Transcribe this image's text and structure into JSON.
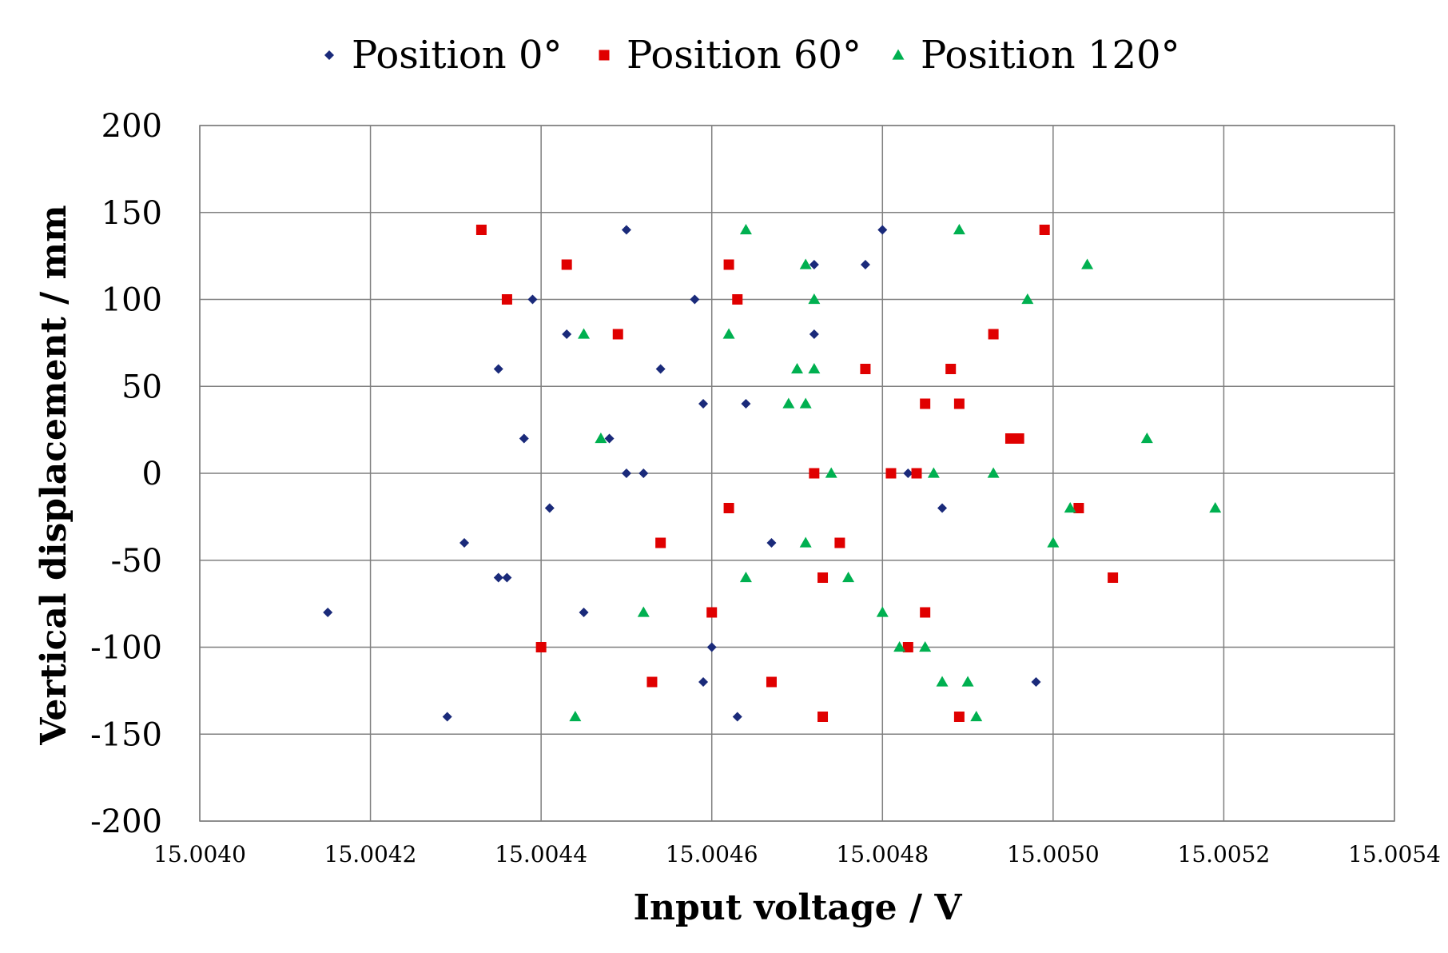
{
  "chart_data": {
    "type": "scatter",
    "title": "",
    "xlabel": "Input voltage / V",
    "ylabel": "Vertical displacement / mm",
    "xlim": [
      15.004,
      15.0054
    ],
    "ylim": [
      -200,
      200
    ],
    "x_ticks": [
      "15.0040",
      "15.0042",
      "15.0044",
      "15.0046",
      "15.0048",
      "15.0050",
      "15.0052",
      "15.0054"
    ],
    "x_tick_values": [
      15.004,
      15.0042,
      15.0044,
      15.0046,
      15.0048,
      15.005,
      15.0052,
      15.0054
    ],
    "y_ticks": [
      "200",
      "150",
      "100",
      "50",
      "0",
      "-50",
      "-100",
      "-150",
      "-200"
    ],
    "y_tick_values": [
      200,
      150,
      100,
      50,
      0,
      -50,
      -100,
      -150,
      -200
    ],
    "grid": true,
    "legend_position": "top-center",
    "series": [
      {
        "name": "Position 0°",
        "marker": "diamond",
        "color": "#1a2a7a",
        "points": [
          [
            15.0045,
            140
          ],
          [
            15.0048,
            140
          ],
          [
            15.00472,
            120
          ],
          [
            15.00478,
            120
          ],
          [
            15.00439,
            100
          ],
          [
            15.00458,
            100
          ],
          [
            15.00443,
            80
          ],
          [
            15.00472,
            80
          ],
          [
            15.00435,
            60
          ],
          [
            15.00454,
            60
          ],
          [
            15.00459,
            40
          ],
          [
            15.00464,
            40
          ],
          [
            15.00438,
            20
          ],
          [
            15.00448,
            20
          ],
          [
            15.0045,
            0
          ],
          [
            15.00452,
            0
          ],
          [
            15.00483,
            0
          ],
          [
            15.00441,
            -20
          ],
          [
            15.00487,
            -20
          ],
          [
            15.00431,
            -40
          ],
          [
            15.00467,
            -40
          ],
          [
            15.00435,
            -60
          ],
          [
            15.00436,
            -60
          ],
          [
            15.00415,
            -80
          ],
          [
            15.00445,
            -80
          ],
          [
            15.0046,
            -100
          ],
          [
            15.00459,
            -120
          ],
          [
            15.00498,
            -120
          ],
          [
            15.00429,
            -140
          ],
          [
            15.00463,
            -140
          ]
        ]
      },
      {
        "name": "Position 60°",
        "marker": "square",
        "color": "#e00000",
        "points": [
          [
            15.00433,
            140
          ],
          [
            15.00499,
            140
          ],
          [
            15.00443,
            120
          ],
          [
            15.00462,
            120
          ],
          [
            15.00436,
            100
          ],
          [
            15.00463,
            100
          ],
          [
            15.00449,
            80
          ],
          [
            15.00493,
            80
          ],
          [
            15.00478,
            60
          ],
          [
            15.00488,
            60
          ],
          [
            15.00485,
            40
          ],
          [
            15.00489,
            40
          ],
          [
            15.00495,
            20
          ],
          [
            15.00496,
            20
          ],
          [
            15.00472,
            0
          ],
          [
            15.00481,
            0
          ],
          [
            15.00484,
            0
          ],
          [
            15.00462,
            -20
          ],
          [
            15.00503,
            -20
          ],
          [
            15.00454,
            -40
          ],
          [
            15.00475,
            -40
          ],
          [
            15.00473,
            -60
          ],
          [
            15.00507,
            -60
          ],
          [
            15.0046,
            -80
          ],
          [
            15.00485,
            -80
          ],
          [
            15.0044,
            -100
          ],
          [
            15.00483,
            -100
          ],
          [
            15.00453,
            -120
          ],
          [
            15.00467,
            -120
          ],
          [
            15.00473,
            -140
          ],
          [
            15.00489,
            -140
          ]
        ]
      },
      {
        "name": "Position 120°",
        "marker": "triangle",
        "color": "#00b050",
        "points": [
          [
            15.00464,
            140
          ],
          [
            15.00489,
            140
          ],
          [
            15.00471,
            120
          ],
          [
            15.00504,
            120
          ],
          [
            15.00472,
            100
          ],
          [
            15.00497,
            100
          ],
          [
            15.00445,
            80
          ],
          [
            15.00462,
            80
          ],
          [
            15.0047,
            60
          ],
          [
            15.00472,
            60
          ],
          [
            15.00469,
            40
          ],
          [
            15.00471,
            40
          ],
          [
            15.00447,
            20
          ],
          [
            15.00511,
            20
          ],
          [
            15.00474,
            0
          ],
          [
            15.00486,
            0
          ],
          [
            15.00493,
            0
          ],
          [
            15.00502,
            -20
          ],
          [
            15.00519,
            -20
          ],
          [
            15.00471,
            -40
          ],
          [
            15.005,
            -40
          ],
          [
            15.00464,
            -60
          ],
          [
            15.00476,
            -60
          ],
          [
            15.00452,
            -80
          ],
          [
            15.0048,
            -80
          ],
          [
            15.00482,
            -100
          ],
          [
            15.00485,
            -100
          ],
          [
            15.00487,
            -120
          ],
          [
            15.0049,
            -120
          ],
          [
            15.00444,
            -140
          ],
          [
            15.00491,
            -140
          ]
        ]
      }
    ]
  }
}
